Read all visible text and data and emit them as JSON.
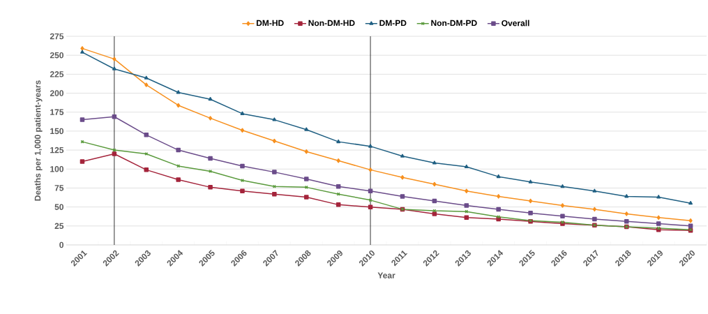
{
  "chart_data": {
    "type": "line",
    "xlabel": "Year",
    "ylabel": "Deaths per 1,000 patient-years",
    "categories": [
      "2001",
      "2002",
      "2003",
      "2004",
      "2005",
      "2006",
      "2007",
      "2008",
      "2009",
      "2010",
      "2011",
      "2012",
      "2013",
      "2014",
      "2015",
      "2016",
      "2017",
      "2018",
      "2019",
      "2020"
    ],
    "series": [
      {
        "name": "DM-HD",
        "color": "#f7901e",
        "marker": "diamond",
        "values": [
          259,
          245,
          211,
          184,
          167,
          151,
          137,
          123,
          111,
          99,
          89,
          80,
          71,
          64,
          58,
          52,
          47,
          41,
          36,
          32
        ]
      },
      {
        "name": "Non-DM-HD",
        "color": "#a4243b",
        "marker": "square",
        "values": [
          110,
          120,
          99,
          86,
          76,
          71,
          67,
          63,
          53,
          50,
          47,
          41,
          36,
          34,
          31,
          28,
          26,
          24,
          20,
          19
        ]
      },
      {
        "name": "DM-PD",
        "color": "#1f5f82",
        "marker": "triangle",
        "values": [
          254,
          232,
          220,
          201,
          192,
          173,
          165,
          152,
          136,
          130,
          117,
          108,
          103,
          90,
          83,
          77,
          71,
          64,
          63,
          55
        ]
      },
      {
        "name": "Non-DM-PD",
        "color": "#5a9a3c",
        "marker": "cross",
        "values": [
          136,
          125,
          120,
          104,
          97,
          85,
          77,
          76,
          67,
          59,
          47,
          45,
          44,
          37,
          32,
          30,
          26,
          24,
          22,
          20
        ]
      },
      {
        "name": "Overall",
        "color": "#6b4c8a",
        "marker": "square",
        "values": [
          165,
          169,
          145,
          125,
          114,
          104,
          96,
          87,
          77,
          71,
          64,
          58,
          52,
          47,
          42,
          38,
          34,
          31,
          28,
          25
        ]
      }
    ],
    "ylim": [
      0,
      275
    ],
    "yticks": [
      0,
      25,
      50,
      75,
      100,
      125,
      150,
      175,
      200,
      225,
      250,
      275
    ],
    "ref_lines": [
      {
        "axis": "x",
        "value": "2002",
        "color": "#000000"
      },
      {
        "axis": "x",
        "value": "2010",
        "color": "#000000"
      }
    ],
    "grid": "y",
    "legend": "top",
    "line_style": "solid"
  }
}
